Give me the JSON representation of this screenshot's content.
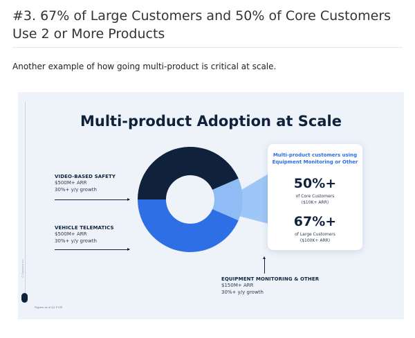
{
  "article": {
    "heading": "#3. 67% of Large Customers and 50% of Core Customers Use 2 or More Products",
    "intro": "Another example of how going multi-product is critical at scale."
  },
  "chart_data": {
    "type": "pie",
    "title": "Multi-product Adoption at Scale",
    "segments": [
      {
        "name": "VIDEO-BASED SAFETY",
        "arr": "$500M+ ARR",
        "growth": "30%+ y/y growth",
        "value": 500,
        "color": "#10223b"
      },
      {
        "name": "VEHICLE TELEMATICS",
        "arr": "$500M+ ARR",
        "growth": "30%+ y/y growth",
        "value": 500,
        "color": "#2f6fe6"
      },
      {
        "name": "EQUIPMENT MONITORING & OTHER",
        "arr": "$150M+ ARR",
        "growth": "30%+ y/y growth",
        "value": 150,
        "color": "#8fbcf5"
      }
    ],
    "callout": {
      "heading_line1": "Multi-product customers using",
      "heading_line2": "Equipment Monitoring or Other",
      "stats": [
        {
          "value": "50%+",
          "line1": "of Core Customers",
          "line2": "($10K+ ARR)"
        },
        {
          "value": "67%+",
          "line1": "of Large Customers",
          "line2": "($100K+ ARR)"
        }
      ]
    },
    "footnote": "Figures as of Q1 FY25",
    "side_tag": "© Samsara Inc."
  }
}
